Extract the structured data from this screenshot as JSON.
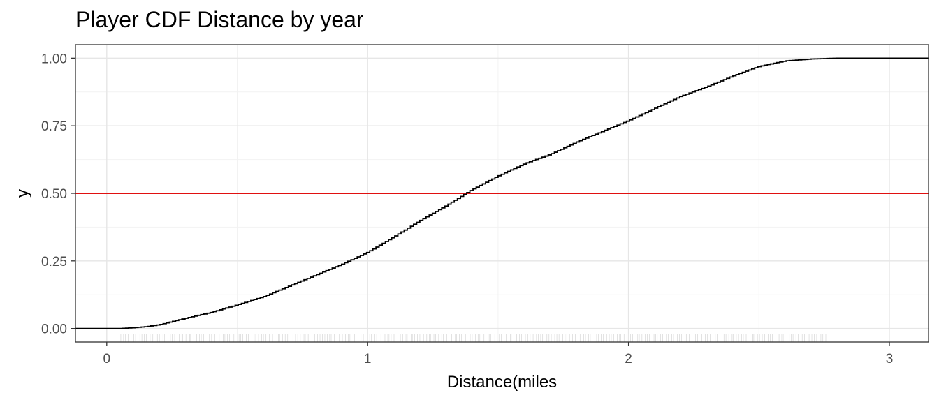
{
  "chart_data": {
    "type": "line",
    "title": "Player CDF Distance by year",
    "xlabel": "Distance(miles",
    "ylabel": "y",
    "xlim": [
      -0.12,
      3.15
    ],
    "ylim": [
      -0.05,
      1.05
    ],
    "x_ticks": [
      0,
      1,
      2,
      3
    ],
    "x_tick_labels": [
      "0",
      "1",
      "2",
      "3"
    ],
    "y_ticks": [
      0,
      0.25,
      0.5,
      0.75,
      1.0
    ],
    "y_tick_labels": [
      "0.00",
      "0.25",
      "0.50",
      "0.75",
      "1.00"
    ],
    "grid": true,
    "series": [
      {
        "kind": "ecdf-step",
        "color": "#000000",
        "x": [
          0.0,
          0.05,
          0.1,
          0.15,
          0.2,
          0.25,
          0.3,
          0.4,
          0.5,
          0.6,
          0.7,
          0.8,
          0.9,
          1.0,
          1.1,
          1.2,
          1.3,
          1.4,
          1.5,
          1.6,
          1.7,
          1.8,
          1.9,
          2.0,
          2.1,
          2.2,
          2.3,
          2.4,
          2.5,
          2.6,
          2.7,
          2.8,
          3.15
        ],
        "y": [
          0.0,
          0.0,
          0.003,
          0.007,
          0.014,
          0.026,
          0.038,
          0.06,
          0.088,
          0.118,
          0.158,
          0.198,
          0.238,
          0.283,
          0.34,
          0.4,
          0.455,
          0.515,
          0.565,
          0.61,
          0.645,
          0.69,
          0.73,
          0.77,
          0.815,
          0.86,
          0.895,
          0.935,
          0.97,
          0.99,
          0.997,
          1.0,
          1.0
        ]
      }
    ],
    "reference_line": {
      "y": 0.5,
      "color": "#e01010"
    },
    "rug": {
      "x_min": 0.05,
      "x_max": 2.75,
      "color": "#d0d0d0"
    }
  }
}
